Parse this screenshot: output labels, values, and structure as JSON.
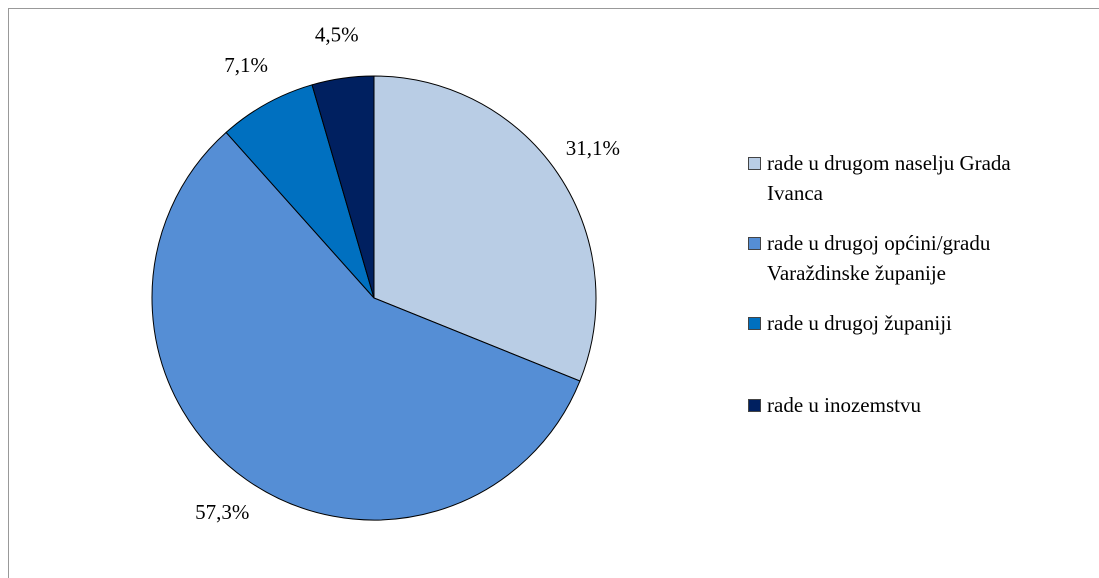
{
  "chart_data": {
    "type": "pie",
    "categories": [
      "rade u drugom naselju Grada Ivanca",
      "rade u drugoj općini/gradu Varaždinske županije",
      "rade u drugoj županiji",
      "rade u inozemstvu"
    ],
    "values": [
      31.1,
      57.3,
      7.1,
      4.5
    ],
    "value_labels": [
      "31,1%",
      "57,3%",
      "7,1%",
      "4,5%"
    ],
    "colors": [
      "#b9cde5",
      "#558ed5",
      "#0070c0",
      "#002060"
    ],
    "legend": "right"
  }
}
